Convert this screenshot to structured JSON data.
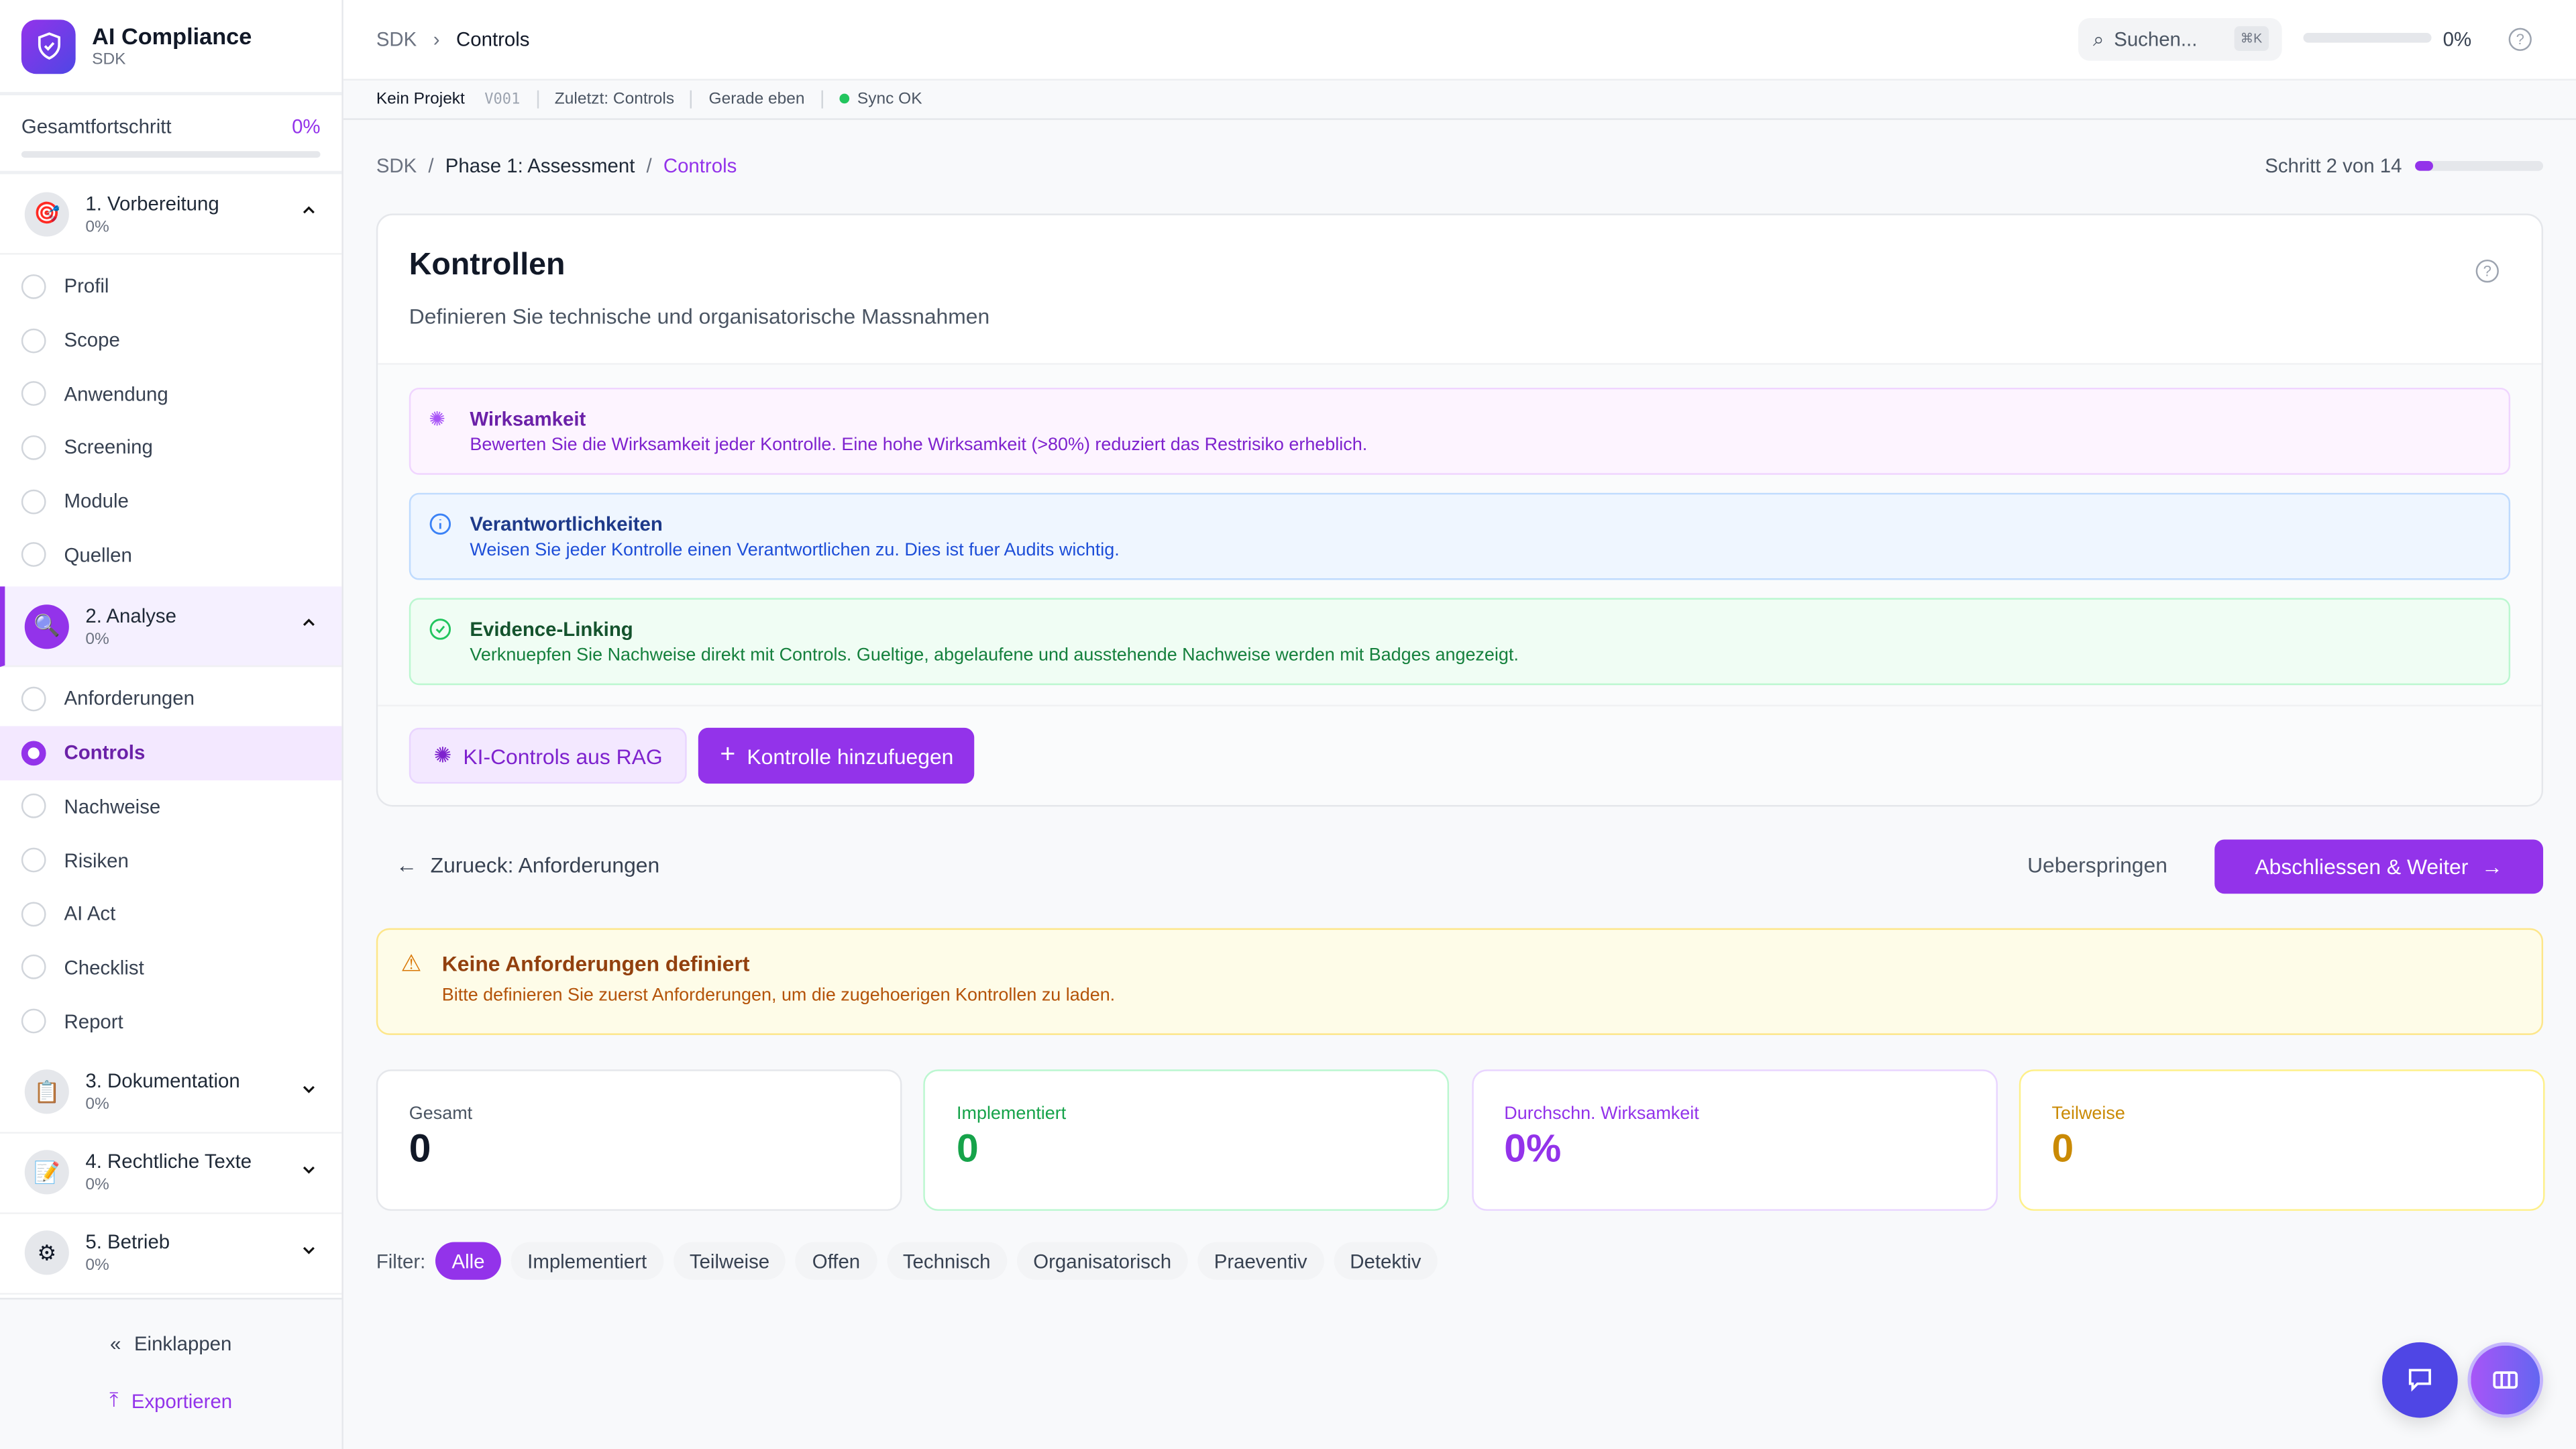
{
  "app": {
    "title": "AI Compliance",
    "subtitle": "SDK"
  },
  "sidebar": {
    "progress_label": "Gesamtfortschritt",
    "progress_value": "0%",
    "progress_fraction": 0,
    "groups": [
      {
        "label": "1. Vorbereitung",
        "pct": "0%",
        "icon": "target-icon",
        "expanded": true,
        "items": [
          "Profil",
          "Scope",
          "Anwendung",
          "Screening",
          "Module",
          "Quellen"
        ]
      },
      {
        "label": "2. Analyse",
        "pct": "0%",
        "icon": "magnifier-icon",
        "expanded": true,
        "items": [
          "Anforderungen",
          "Controls",
          "Nachweise",
          "Risiken",
          "AI Act",
          "Checklist",
          "Report"
        ]
      },
      {
        "label": "3. Dokumentation",
        "pct": "0%",
        "icon": "clipboard-icon",
        "expanded": false
      },
      {
        "label": "4. Rechtliche Texte",
        "pct": "0%",
        "icon": "memo-icon",
        "expanded": false
      },
      {
        "label": "5. Betrieb",
        "pct": "0%",
        "icon": "gear-icon",
        "expanded": false
      }
    ],
    "collapse": "Einklappen",
    "export": "Exportieren"
  },
  "header": {
    "crumb_root": "SDK",
    "crumb_current": "Controls",
    "search_placeholder": "Suchen...",
    "shortcut": "⌘K",
    "progress": "0%",
    "progress_fraction": 0
  },
  "status": {
    "project": "Kein Projekt",
    "version": "V001",
    "last": "Zuletzt: Controls",
    "time": "Gerade eben",
    "sync": "Sync OK"
  },
  "breadcrumb": {
    "root": "SDK",
    "phase": "Phase 1: Assessment",
    "current": "Controls"
  },
  "step": {
    "label": "Schritt 2 von 14",
    "fraction": 0.143
  },
  "card": {
    "title": "Kontrollen",
    "subtitle": "Definieren Sie technische und organisatorische Massnahmen",
    "alerts": [
      {
        "title": "Wirksamkeit",
        "text": "Bewerten Sie die Wirksamkeit jeder Kontrolle. Eine hohe Wirksamkeit (>80%) reduziert das Restrisiko erheblich."
      },
      {
        "title": "Verantwortlichkeiten",
        "text": "Weisen Sie jeder Kontrolle einen Verantwortlichen zu. Dies ist fuer Audits wichtig."
      },
      {
        "title": "Evidence-Linking",
        "text": "Verknuepfen Sie Nachweise direkt mit Controls. Gueltige, abgelaufene und ausstehende Nachweise werden mit Badges angezeigt."
      }
    ],
    "rag_button": "KI-Controls aus RAG",
    "add_button": "Kontrolle hinzufuegen"
  },
  "nav": {
    "back": "Zurueck: Anforderungen",
    "skip": "Ueberspringen",
    "next": "Abschliessen & Weiter"
  },
  "warning": {
    "title": "Keine Anforderungen definiert",
    "text": "Bitte definieren Sie zuerst Anforderungen, um die zugehoerigen Kontrollen zu laden."
  },
  "stats": [
    {
      "label": "Gesamt",
      "value": "0",
      "color": "#111827",
      "border": "#e5e7eb",
      "labelColor": "#4b5563"
    },
    {
      "label": "Implementiert",
      "value": "0",
      "color": "#16a34a",
      "border": "#bbf7d0",
      "labelColor": "#16a34a"
    },
    {
      "label": "Durchschn. Wirksamkeit",
      "value": "0%",
      "color": "#9333ea",
      "border": "#e9d5ff",
      "labelColor": "#9333ea"
    },
    {
      "label": "Teilweise",
      "value": "0",
      "color": "#ca8a04",
      "border": "#fef08a",
      "labelColor": "#ca8a04"
    }
  ],
  "filter": {
    "label": "Filter:",
    "chips": [
      "Alle",
      "Implementiert",
      "Teilweise",
      "Offen",
      "Technisch",
      "Organisatorisch",
      "Praeventiv",
      "Detektiv"
    ],
    "active": "Alle"
  },
  "colors": {
    "accent": "#9333ea",
    "chat": "#4f46e5"
  }
}
